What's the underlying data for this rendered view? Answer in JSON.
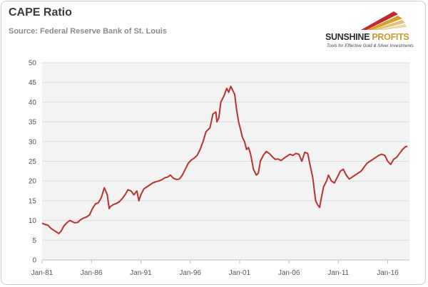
{
  "header": {
    "title": "CAPE Ratio",
    "subtitle": "Source: Federal Reserve Bank of St. Louis"
  },
  "logo": {
    "name_part1": "SUNSHINE",
    "name_part2": "PROFITS",
    "tagline": "Tools for Effective Gold & Silver Investments",
    "icon": "sunrays-logo-icon"
  },
  "colors": {
    "line": "#b8322e",
    "plot_bg": "#f3f3f3",
    "grid": "#dcdcdc"
  },
  "chart_data": {
    "type": "line",
    "title": "CAPE Ratio",
    "subtitle": "Source: Federal Reserve Bank of St. Louis",
    "xlabel": "",
    "ylabel": "",
    "ylim": [
      0,
      50
    ],
    "xlim": [
      1981.0,
      2018.2
    ],
    "yticks": [
      0,
      5,
      10,
      15,
      20,
      25,
      30,
      35,
      40,
      45,
      50
    ],
    "xticks": [
      {
        "label": "Jan-81",
        "value": 1981
      },
      {
        "label": "Jan-86",
        "value": 1986
      },
      {
        "label": "Jan-91",
        "value": 1991
      },
      {
        "label": "Jan-96",
        "value": 1996
      },
      {
        "label": "Jan-01",
        "value": 2001
      },
      {
        "label": "Jan-06",
        "value": 2006
      },
      {
        "label": "Jan-11",
        "value": 2011
      },
      {
        "label": "Jan-16",
        "value": 2016
      }
    ],
    "grid": true,
    "legend": "none",
    "series": [
      {
        "x": [
          1981.0,
          1981.3,
          1981.6,
          1981.9,
          1982.2,
          1982.5,
          1982.7,
          1982.9,
          1983.2,
          1983.5,
          1983.8,
          1984.0,
          1984.3,
          1984.6,
          1984.9,
          1985.2,
          1985.5,
          1985.8,
          1986.1,
          1986.4,
          1986.7,
          1987.0,
          1987.3,
          1987.6,
          1987.8,
          1987.9,
          1988.2,
          1988.5,
          1988.8,
          1989.1,
          1989.4,
          1989.7,
          1990.0,
          1990.3,
          1990.6,
          1990.8,
          1991.0,
          1991.3,
          1991.6,
          1991.9,
          1992.2,
          1992.5,
          1992.8,
          1993.1,
          1993.4,
          1993.7,
          1994.0,
          1994.3,
          1994.6,
          1994.9,
          1995.2,
          1995.5,
          1995.8,
          1996.1,
          1996.4,
          1996.7,
          1997.0,
          1997.3,
          1997.6,
          1997.8,
          1998.0,
          1998.3,
          1998.6,
          1998.7,
          1998.9,
          1999.1,
          1999.4,
          1999.7,
          1999.9,
          2000.1,
          2000.3,
          2000.5,
          2000.7,
          2000.9,
          2001.1,
          2001.3,
          2001.5,
          2001.7,
          2001.9,
          2002.1,
          2002.4,
          2002.7,
          2002.9,
          2003.1,
          2003.4,
          2003.7,
          2004.0,
          2004.3,
          2004.6,
          2004.9,
          2005.2,
          2005.5,
          2005.8,
          2006.1,
          2006.4,
          2006.7,
          2007.0,
          2007.3,
          2007.6,
          2007.9,
          2008.1,
          2008.4,
          2008.7,
          2008.9,
          2009.1,
          2009.3,
          2009.5,
          2009.8,
          2010.0,
          2010.3,
          2010.6,
          2010.9,
          2011.2,
          2011.5,
          2011.8,
          2012.1,
          2012.4,
          2012.7,
          2013.0,
          2013.3,
          2013.6,
          2013.9,
          2014.2,
          2014.5,
          2014.8,
          2015.1,
          2015.4,
          2015.7,
          2016.0,
          2016.3,
          2016.6,
          2016.9,
          2017.2,
          2017.5,
          2017.8,
          2018.0
        ],
        "values": [
          9.3,
          9.0,
          8.8,
          8.0,
          7.5,
          7.0,
          6.7,
          7.2,
          8.6,
          9.4,
          10.0,
          9.8,
          9.4,
          9.5,
          10.2,
          10.6,
          10.9,
          11.4,
          13.0,
          14.2,
          14.5,
          15.8,
          18.3,
          16.5,
          13.0,
          13.5,
          14.0,
          14.3,
          14.7,
          15.5,
          16.5,
          17.8,
          17.5,
          16.5,
          17.5,
          15.0,
          16.5,
          18.0,
          18.5,
          19.0,
          19.5,
          19.8,
          20.0,
          20.3,
          20.8,
          21.0,
          21.5,
          20.7,
          20.4,
          20.5,
          21.5,
          23.0,
          24.5,
          25.3,
          25.8,
          26.5,
          28.0,
          30.0,
          32.5,
          33.0,
          33.5,
          37.0,
          37.5,
          35.0,
          36.0,
          40.0,
          41.5,
          43.5,
          42.5,
          44.0,
          43.0,
          42.0,
          38.0,
          35.0,
          33.0,
          31.0,
          30.0,
          28.0,
          28.5,
          27.0,
          23.0,
          21.5,
          22.0,
          25.0,
          26.5,
          27.5,
          27.0,
          26.2,
          25.5,
          25.6,
          25.2,
          25.8,
          26.3,
          26.8,
          26.5,
          27.0,
          26.8,
          25.0,
          27.3,
          27.0,
          24.5,
          21.0,
          15.0,
          14.0,
          13.3,
          16.0,
          18.5,
          20.0,
          21.5,
          20.0,
          19.5,
          21.0,
          22.5,
          23.0,
          21.5,
          20.5,
          21.0,
          21.5,
          22.0,
          22.5,
          23.5,
          24.5,
          25.0,
          25.5,
          26.0,
          26.5,
          26.8,
          26.5,
          25.0,
          24.2,
          25.5,
          26.0,
          27.0,
          28.0,
          28.7,
          28.8
        ]
      }
    ]
  }
}
